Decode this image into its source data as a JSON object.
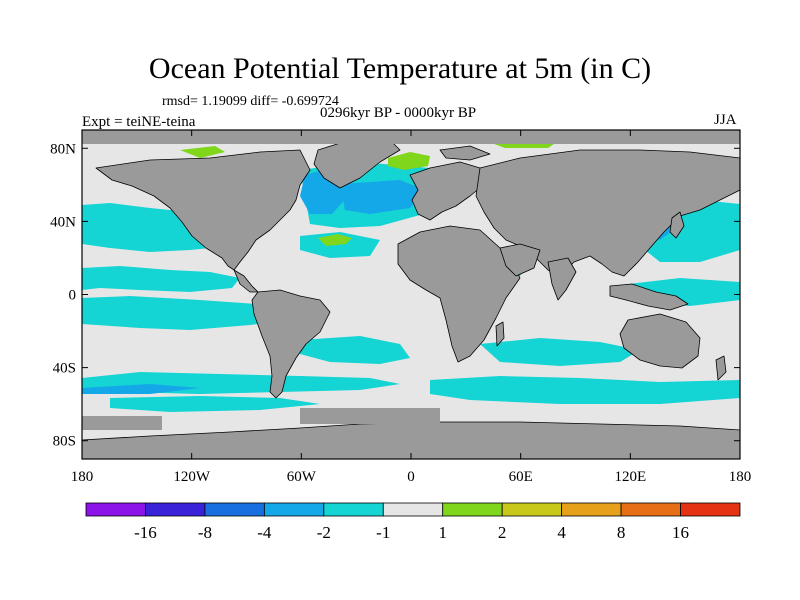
{
  "title": "Ocean Potential Temperature at 5m (in C)",
  "stats": "rmsd= 1.19099 diff= -0.699724",
  "period": "0296kyr BP - 0000kyr BP",
  "experiment": "Expt = teiNE-teina",
  "season": "JJA",
  "colors": {
    "land": "#9a9a9a",
    "coast": "#000000",
    "ocean_neutral": "#e6e6e6"
  },
  "map": {
    "x_axis": {
      "min": -180,
      "max": 180,
      "ticks": [
        {
          "value": -180,
          "label": "180"
        },
        {
          "value": -120,
          "label": "120W"
        },
        {
          "value": -60,
          "label": "60W"
        },
        {
          "value": 0,
          "label": "0"
        },
        {
          "value": 60,
          "label": "60E"
        },
        {
          "value": 120,
          "label": "120E"
        },
        {
          "value": 180,
          "label": "180"
        }
      ]
    },
    "y_axis": {
      "min": -90,
      "max": 90,
      "ticks": [
        {
          "value": 80,
          "label": "80N"
        },
        {
          "value": 40,
          "label": "40N"
        },
        {
          "value": 0,
          "label": "0"
        },
        {
          "value": -40,
          "label": "40S"
        },
        {
          "value": -80,
          "label": "80S"
        }
      ]
    }
  },
  "colorbar": {
    "labels": [
      "-16",
      "-8",
      "-4",
      "-2",
      "-1",
      "1",
      "2",
      "4",
      "8",
      "16"
    ],
    "colors": [
      "#8c14e8",
      "#3a22d8",
      "#1a6fe0",
      "#14a8e8",
      "#14d4d4",
      "#e6e6e6",
      "#80d61a",
      "#c8c81a",
      "#e6a01a",
      "#e66e14",
      "#e63214"
    ]
  }
}
